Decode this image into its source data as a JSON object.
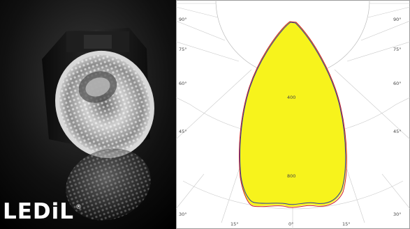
{
  "brand": {
    "name": "LEDiL",
    "registered_mark": "®"
  },
  "product_photo": {
    "subject": "lens-icon"
  },
  "polar_diagram": {
    "angle_labels": {
      "left": [
        "90°",
        "75°",
        "60°",
        "45°",
        "30°",
        "15°"
      ],
      "right": [
        "90°",
        "75°",
        "60°",
        "45°",
        "30°",
        "15°"
      ],
      "center": "0°"
    },
    "radial_labels": [
      "400",
      "800"
    ],
    "fill_color": "#f7f31c",
    "curve_colors": [
      "#2a3aa8",
      "#d02020"
    ]
  }
}
